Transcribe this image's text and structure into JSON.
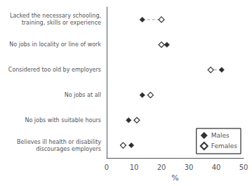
{
  "chart_data": {
    "type": "dumbbell",
    "categories": [
      "Lacked the necessary schooling,\ntraining, skills or experience",
      "No jobs in locality or line of work",
      "Considered too old by employers",
      "No jobs at all",
      "No jobs with suitable hours",
      "Believes ill health or disability\ndiscourages employers"
    ],
    "series": [
      {
        "name": "Males",
        "color": "#000000",
        "marker": "diamond",
        "values": [
          13,
          22,
          42,
          13,
          8,
          9
        ]
      },
      {
        "name": "Females",
        "color": "#000000",
        "marker": "open_diamond",
        "values": [
          20,
          20,
          38,
          16,
          11,
          6
        ]
      }
    ],
    "color": "#999999",
    "line_style": "dashed",
    "xlabel": "%",
    "xlim": [
      0,
      50
    ],
    "xticks": [
      0,
      10,
      20,
      30,
      40,
      50
    ],
    "grid": false,
    "legend": "lower right"
  }
}
